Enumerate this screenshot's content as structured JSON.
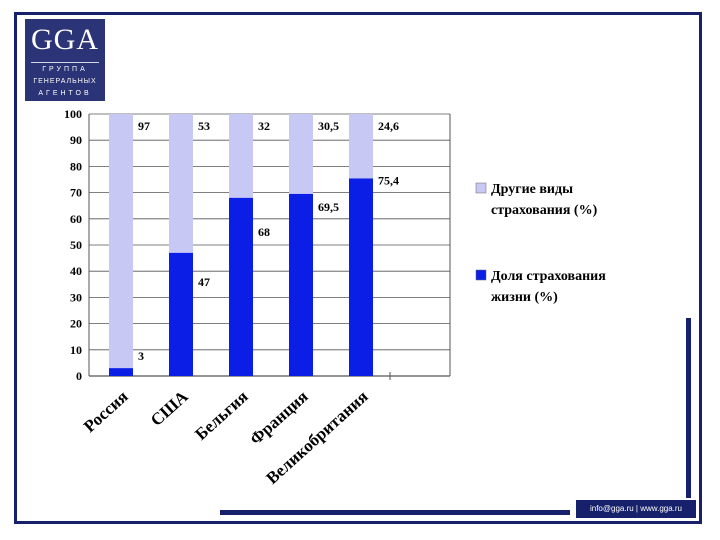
{
  "logo": {
    "mark": "GGA",
    "line1": "ГРУППА",
    "line2": "ГЕНЕРАЛЬНЫХ",
    "line3": "АГЕНТОВ"
  },
  "footer": {
    "contact": "info@gga.ru | www.gga.ru"
  },
  "colors": {
    "frame": "#16206b",
    "life": "#0a1ee6",
    "other": "#c7c8f4"
  },
  "chart_data": {
    "type": "bar",
    "stacked": true,
    "categories": [
      "Россия",
      "США",
      "Бельгия",
      "Франция",
      "Великобритания"
    ],
    "series": [
      {
        "name": "Доля страхования жизни (%)",
        "values": [
          3,
          47,
          68,
          69.5,
          75.4
        ],
        "labels": [
          "3",
          "47",
          "68",
          "69,5",
          "75,4"
        ],
        "color": "#0a1ee6"
      },
      {
        "name": "Другие виды страхования (%)",
        "values": [
          97,
          53,
          32,
          30.5,
          24.6
        ],
        "labels": [
          "97",
          "53",
          "32",
          "30,5",
          "24,6"
        ],
        "color": "#c7c8f4"
      }
    ],
    "ylim": [
      0,
      100
    ],
    "yticks": [
      0,
      10,
      20,
      30,
      40,
      50,
      60,
      70,
      80,
      90,
      100
    ],
    "grid": true,
    "legend_position": "right",
    "legend": [
      {
        "line1": "Другие виды",
        "line2": "страхования (%)",
        "color": "#c7c8f4"
      },
      {
        "line1": "Доля страхования",
        "line2": "жизни (%)",
        "color": "#0a1ee6"
      }
    ]
  }
}
